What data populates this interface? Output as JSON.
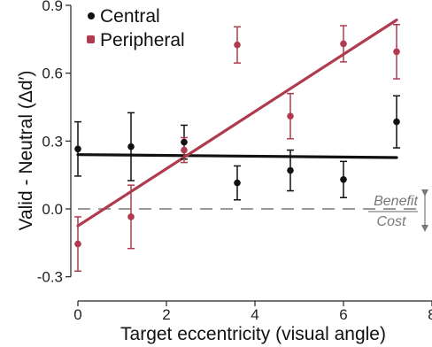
{
  "chart_data": {
    "type": "scatter",
    "xlabel": "Target eccentricity (visual angle)",
    "ylabel": "Valid - Neutral (Δd′)",
    "xlim": [
      0,
      8
    ],
    "ylim": [
      -0.36,
      0.9
    ],
    "x_ticks": [
      0,
      2,
      4,
      6,
      8
    ],
    "y_ticks": [
      -0.3,
      0.0,
      0.3,
      0.6,
      0.9
    ],
    "y_tick_labels": [
      "-0.3",
      "0.0",
      "0.3",
      "0.6",
      "0.9"
    ],
    "legend": {
      "position": "top-left"
    },
    "series": [
      {
        "name": "Central",
        "color": "#111111",
        "points": [
          {
            "x": 0.0,
            "y": 0.265,
            "err": 0.12
          },
          {
            "x": 1.2,
            "y": 0.275,
            "err": 0.15
          },
          {
            "x": 2.4,
            "y": 0.295,
            "err": 0.075
          },
          {
            "x": 3.6,
            "y": 0.115,
            "err": 0.075
          },
          {
            "x": 4.8,
            "y": 0.17,
            "err": 0.09
          },
          {
            "x": 6.0,
            "y": 0.13,
            "err": 0.08
          },
          {
            "x": 7.2,
            "y": 0.385,
            "err": 0.115
          }
        ],
        "fit": {
          "x": [
            0,
            7.2
          ],
          "y": [
            0.24,
            0.227
          ]
        }
      },
      {
        "name": "Peripheral",
        "color": "#b03a4e",
        "points": [
          {
            "x": 0.0,
            "y": -0.155,
            "err": 0.12
          },
          {
            "x": 1.2,
            "y": -0.035,
            "err": 0.14
          },
          {
            "x": 2.4,
            "y": 0.26,
            "err": 0.055
          },
          {
            "x": 3.6,
            "y": 0.725,
            "err": 0.08
          },
          {
            "x": 4.8,
            "y": 0.41,
            "err": 0.1
          },
          {
            "x": 6.0,
            "y": 0.73,
            "err": 0.08
          },
          {
            "x": 7.2,
            "y": 0.695,
            "err": 0.12
          }
        ],
        "fit": {
          "x": [
            0,
            7.2
          ],
          "y": [
            -0.075,
            0.835
          ]
        }
      }
    ],
    "reference_line": {
      "y": 0.0,
      "style": "dashed",
      "color": "#999999"
    },
    "annotations": {
      "benefit": "Benefit",
      "cost": "Cost"
    }
  }
}
